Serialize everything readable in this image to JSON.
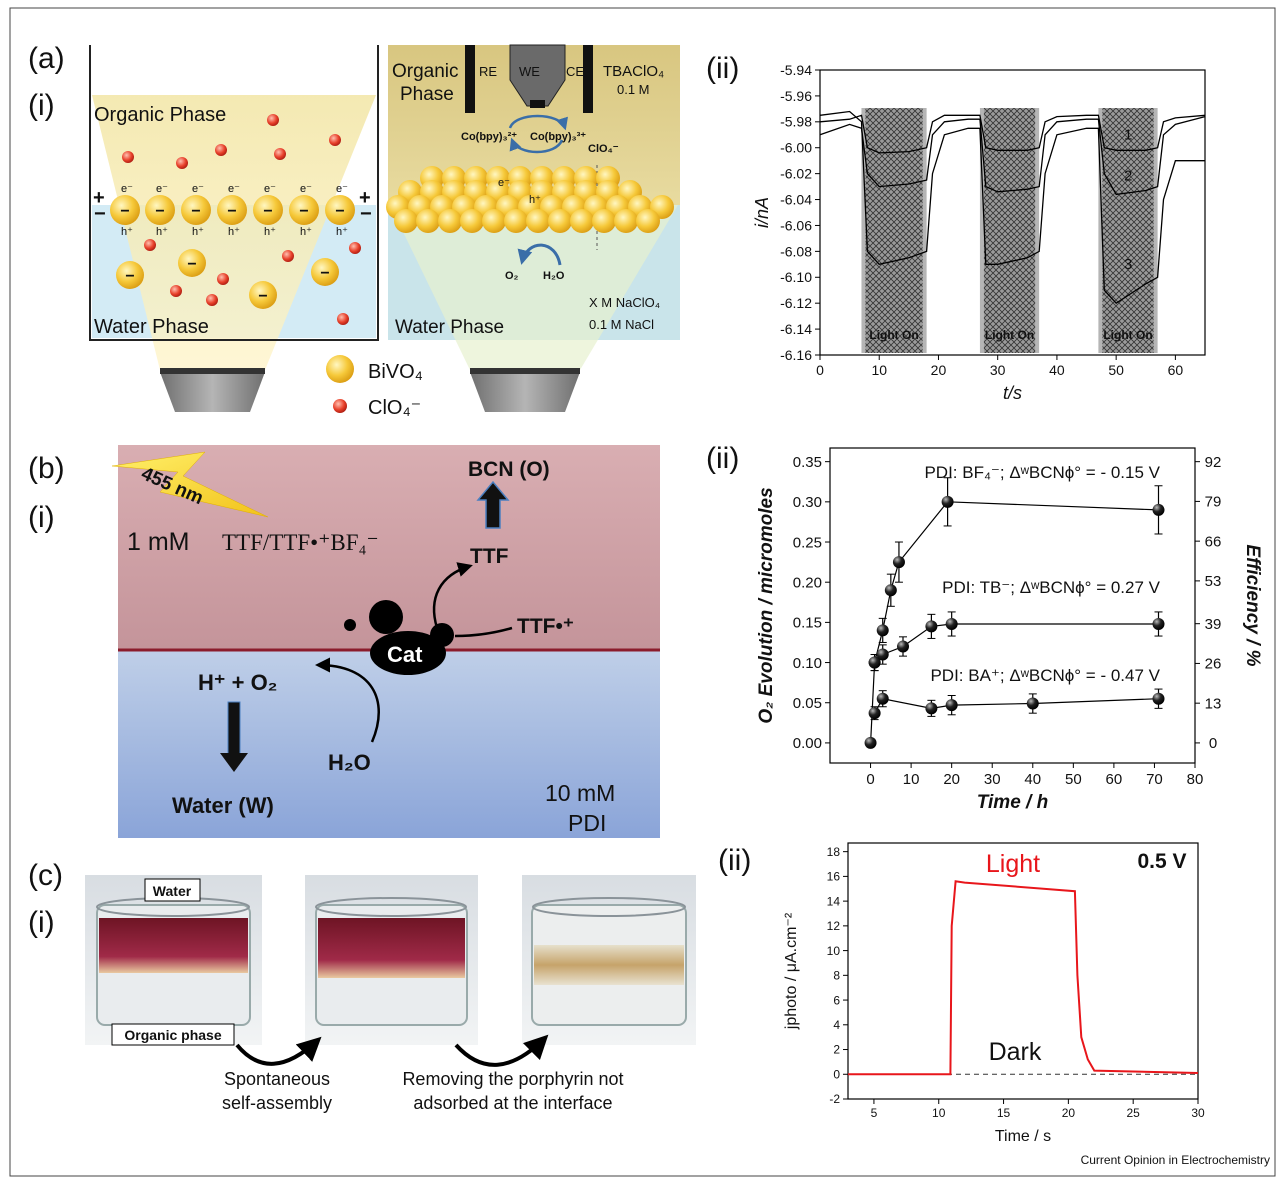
{
  "panel_labels": [
    "(a)",
    "(i)",
    "(ii)",
    "(b)",
    "(i)",
    "(ii)",
    "(c)",
    "(i)",
    "(ii)"
  ],
  "panel_a_i": {
    "left": {
      "organic_phase": "Organic Phase",
      "water_phase": "Water Phase",
      "electron": "e⁻",
      "hole": "h⁺",
      "plus": "+",
      "minus": "−"
    },
    "right": {
      "organic_phase": [
        "Organic",
        "Phase"
      ],
      "re": "RE",
      "we": "WE",
      "ce": "CE",
      "electrolyte": [
        "TBAClO₄",
        "0.1 M"
      ],
      "co2": "Co(bpy)₃²⁺",
      "co3": "Co(bpy)₃³⁺",
      "clo4": "ClO₄⁻",
      "electron": "e⁻",
      "hole": "h⁺",
      "o2": "O₂",
      "h2o": "H₂O",
      "water_phase": "Water Phase",
      "aqueous": [
        "X M NaClO₄",
        "0.1 M NaCl"
      ]
    },
    "legend": [
      "BiVO₄",
      "ClO₄⁻"
    ]
  },
  "panel_b_i": {
    "wavelength": "455 nm",
    "organic_conc": "1 mM",
    "organic_species": "TTF/TTF•⁺BF₄⁻",
    "bcn": "BCN (O)",
    "ttf": "TTF",
    "ttf_cation": "TTF•⁺",
    "cat": "Cat",
    "products": "H⁺ + O₂",
    "h2o": "H₂O",
    "water": "Water (W)",
    "aqueous": [
      "10 mM",
      "PDI"
    ]
  },
  "panel_c_i": {
    "water": "Water",
    "organic": "Organic phase",
    "step1": [
      "Spontaneous",
      "self-assembly"
    ],
    "step2": [
      "Removing the porphyrin not",
      "adsorbed at the interface"
    ]
  },
  "chart_data": [
    {
      "type": "line",
      "xlabel": "t/s",
      "ylabel": "i/nA",
      "xlim": [
        0,
        65
      ],
      "ylim": [
        -6.16,
        -5.94
      ],
      "xticks": [
        0,
        10,
        20,
        30,
        40,
        50,
        60
      ],
      "yticks": [
        -5.94,
        -5.96,
        -5.98,
        {
          "value": -6,
          "label": "-6.00"
        },
        -6.02,
        -6.04,
        -6.06,
        -6.08,
        {
          "value": -6.1,
          "label": "-6.10"
        },
        -6.12,
        -6.14,
        -6.16
      ],
      "x": [
        0,
        5,
        7,
        8,
        10,
        15,
        18,
        19,
        21,
        25,
        27,
        28,
        30,
        35,
        37,
        38,
        40,
        45,
        47,
        48,
        50,
        55,
        57,
        58,
        60,
        65
      ],
      "series": [
        {
          "name": "1",
          "color": "#000000",
          "values": [
            -5.98,
            -5.978,
            -5.975,
            -6.0,
            -6.004,
            -6.003,
            -6.0,
            -5.98,
            -5.975,
            -5.975,
            -5.975,
            -6.0,
            -6.002,
            -6.002,
            -6.0,
            -5.98,
            -5.976,
            -5.975,
            -5.975,
            -6.0,
            -6.002,
            -6.002,
            -6.0,
            -5.98,
            -5.977,
            -5.975
          ]
        },
        {
          "name": "2",
          "color": "#000000",
          "values": [
            -5.99,
            -5.982,
            -5.985,
            -6.02,
            -6.03,
            -6.028,
            -6.025,
            -5.99,
            -5.98,
            -5.978,
            -5.978,
            -6.03,
            -6.034,
            -6.032,
            -6.03,
            -5.99,
            -5.98,
            -5.978,
            -5.978,
            -6.02,
            -6.036,
            -6.033,
            -6.03,
            -5.99,
            -5.982,
            -5.976
          ]
        },
        {
          "name": "3",
          "color": "#000000",
          "values": [
            -5.975,
            -5.972,
            -5.98,
            -6.08,
            -6.09,
            -6.085,
            -6.08,
            -6.02,
            -5.99,
            -5.985,
            -5.985,
            -6.09,
            -6.09,
            -6.085,
            -6.08,
            -6.02,
            -5.99,
            -5.985,
            -5.985,
            -6.11,
            -6.12,
            -6.105,
            -6.1,
            -6.04,
            -6.01,
            -6.01
          ]
        }
      ],
      "light_periods": [
        {
          "range": [
            7,
            18
          ],
          "label": "Light On"
        },
        {
          "range": [
            27,
            37
          ],
          "label": "Light On"
        },
        {
          "range": [
            47,
            57
          ],
          "label": "Light On"
        }
      ]
    },
    {
      "type": "scatter",
      "xlabel": "Time / h",
      "ylabel": "O₂ Evolution / micromoles",
      "y2label": "Efficiency / %",
      "xlim": [
        -10,
        80
      ],
      "ylim": [
        -0.025,
        0.367
      ],
      "y2lim": [
        -6.57,
        96.47
      ],
      "xticks": [
        0,
        10,
        20,
        30,
        40,
        50,
        60,
        70,
        80
      ],
      "yticks": [
        {
          "value": 0,
          "label": "0.00"
        },
        0.05,
        {
          "value": 0.1,
          "label": "0.10"
        },
        0.15,
        {
          "value": 0.2,
          "label": "0.20"
        },
        0.25,
        {
          "value": 0.3,
          "label": "0.30"
        },
        0.35
      ],
      "y2ticks": [
        0,
        13,
        26,
        39,
        53,
        66,
        79,
        92
      ],
      "series": [
        {
          "name": "PDI: BF₄⁻; ΔʷBCNϕ° = - 0.15 V",
          "color": "#000000",
          "x": [
            0,
            1,
            3,
            5,
            7,
            19,
            71
          ],
          "values": [
            0,
            0.1,
            0.14,
            0.19,
            0.225,
            0.3,
            0.29
          ],
          "errors": [
            0,
            0.01,
            0.015,
            0.02,
            0.025,
            0.03,
            0.03
          ]
        },
        {
          "name": "PDI: TB⁻; ΔʷBCNϕ° = 0.27 V",
          "color": "#000000",
          "x": [
            1,
            3,
            8,
            15,
            20,
            71
          ],
          "values": [
            0.1,
            0.11,
            0.12,
            0.145,
            0.148,
            0.148
          ],
          "errors": [
            0.01,
            0.012,
            0.012,
            0.015,
            0.015,
            0.015
          ]
        },
        {
          "name": "PDI: BA⁺; ΔʷBCNϕ° = - 0.47 V",
          "color": "#000000",
          "x": [
            1,
            3,
            15,
            20,
            40,
            71
          ],
          "values": [
            0.037,
            0.055,
            0.043,
            0.047,
            0.049,
            0.055
          ],
          "errors": [
            0.008,
            0.01,
            0.01,
            0.012,
            0.012,
            0.012
          ]
        }
      ]
    },
    {
      "type": "line",
      "xlabel": "Time / s",
      "ylabel": "jphoto / μA.cm⁻²",
      "xlim": [
        3,
        30
      ],
      "ylim": [
        -2,
        18.7
      ],
      "xticks": [
        5,
        10,
        15,
        20,
        25,
        30
      ],
      "yticks": [
        -2,
        0,
        2,
        4,
        6,
        8,
        10,
        12,
        14,
        16,
        18
      ],
      "x": [
        3,
        10.9,
        11,
        11.3,
        12,
        20.5,
        20.7,
        21,
        21.5,
        22,
        30
      ],
      "series": [
        {
          "name": "Light",
          "color": "#e8161b",
          "values": [
            0,
            0,
            12,
            15.6,
            15.5,
            14.8,
            8,
            3,
            1.2,
            0.3,
            0.1
          ]
        }
      ],
      "annotations": {
        "dark": "Dark",
        "potential": "0.5 V"
      }
    }
  ],
  "footer": "Current Opinion in Electrochemistry"
}
